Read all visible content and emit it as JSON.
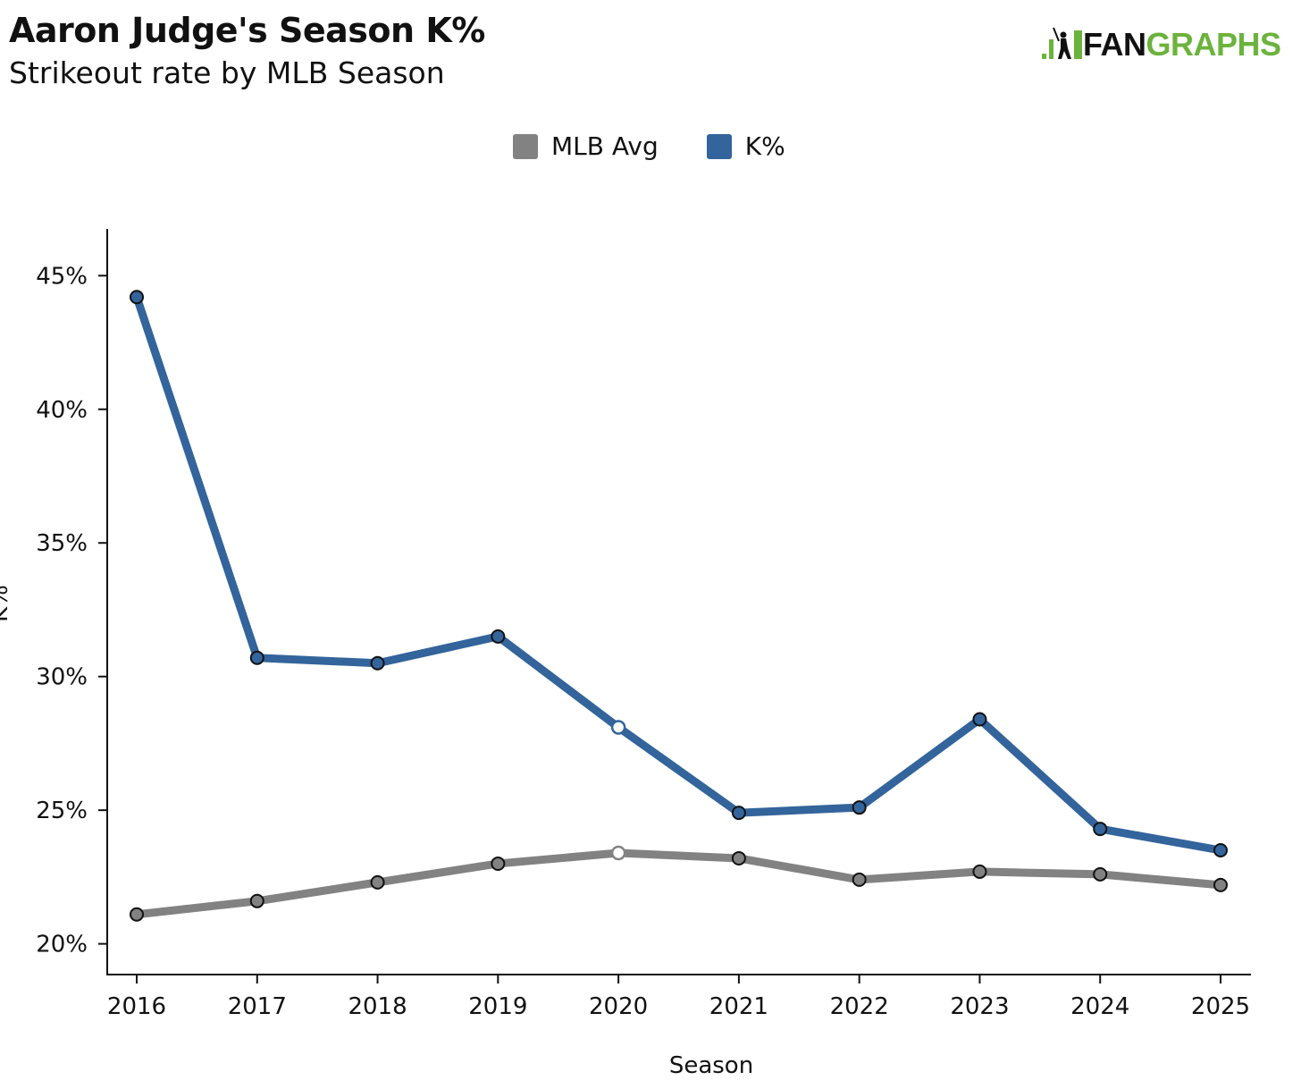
{
  "header": {
    "title": "Aaron Judge's Season K%",
    "subtitle": "Strikeout rate by MLB Season"
  },
  "logo": {
    "fan": "FAN",
    "graphs": "GRAPHS"
  },
  "colors": {
    "mlb_avg": "#828282",
    "k_pct": "#33649b",
    "brand_green": "#6cb33e",
    "axis": "#111111"
  },
  "chart_data": {
    "type": "line",
    "title": "Aaron Judge's Season K%",
    "subtitle": "Strikeout rate by MLB Season",
    "xlabel": "Season",
    "ylabel": "K%",
    "x": [
      2016,
      2017,
      2018,
      2019,
      2020,
      2021,
      2022,
      2023,
      2024,
      2025
    ],
    "xticks": [
      "2016",
      "2017",
      "2018",
      "2019",
      "2020",
      "2021",
      "2022",
      "2023",
      "2024",
      "2025"
    ],
    "ylim": [
      18.85,
      46.75
    ],
    "yticks": [
      20,
      25,
      30,
      35,
      40,
      45
    ],
    "ytick_labels": [
      "20%",
      "25%",
      "30%",
      "35%",
      "40%",
      "45%"
    ],
    "legend_position": "top-center",
    "grid": false,
    "highlighted_open_marker_x": 2020,
    "series": [
      {
        "name": "MLB Avg",
        "color": "#828282",
        "values": [
          21.1,
          21.6,
          22.3,
          23.0,
          23.4,
          23.2,
          22.4,
          22.7,
          22.6,
          22.2
        ]
      },
      {
        "name": "K%",
        "color": "#33649b",
        "values": [
          44.2,
          30.7,
          30.5,
          31.5,
          28.1,
          24.9,
          25.1,
          28.4,
          24.3,
          23.5
        ]
      }
    ]
  }
}
